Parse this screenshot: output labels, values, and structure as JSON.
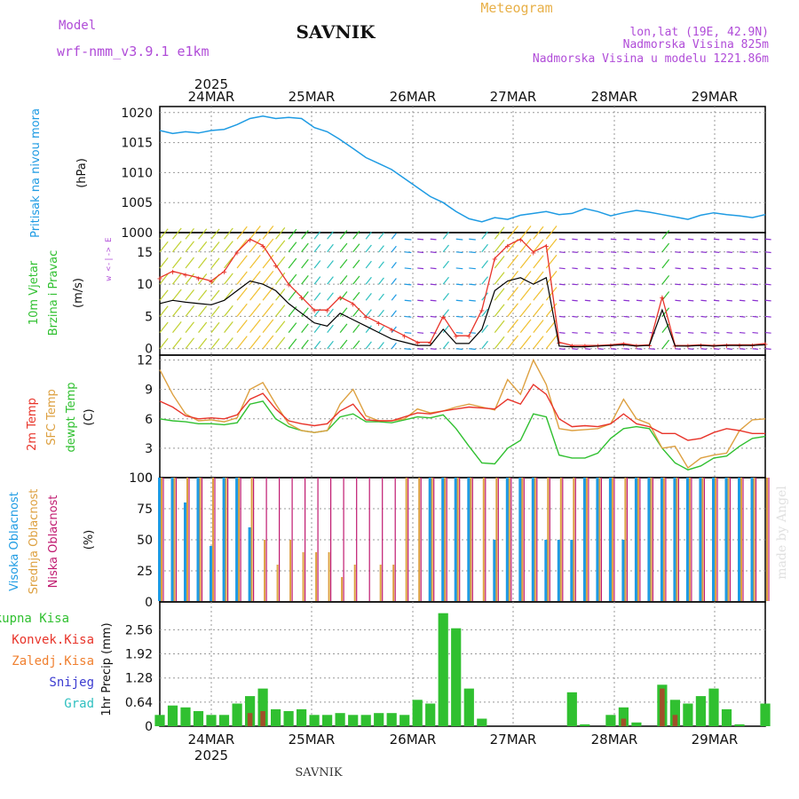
{
  "header": {
    "model_label": "Model",
    "model_name": "wrf-nmm_v3.9.1 e1km",
    "station": "SAVNIK",
    "meteogram": "Meteogram",
    "lonlat": "lon,lat (19E, 42.9N)",
    "elevation": "Nadmorska Visina 825m",
    "model_elevation": "Nadmorska Visina u modelu 1221.86m",
    "footer_station": "SAVNIK",
    "watermark": "made by Angel"
  },
  "time_axis": {
    "year": "2025",
    "dates": [
      "24MAR",
      "25MAR",
      "26MAR",
      "27MAR",
      "28MAR",
      "29MAR"
    ]
  },
  "colors": {
    "pressure": "#1e9be3",
    "wind_speed": "#000000",
    "wind_gust": "#e8342a",
    "temp_2m": "#e8342a",
    "temp_sfc": "#dda040",
    "temp_dew": "#30c030",
    "cloud_high": "#1e9be3",
    "cloud_mid": "#dda040",
    "cloud_low": "#c01a70",
    "precip_total": "#30c030",
    "precip_conv": "#e8342a",
    "precip_frozen": "#f08030",
    "precip_snow": "#3b3bd0",
    "precip_hail": "#30c0c0"
  },
  "panels": {
    "pressure": {
      "label": "Pritisak na nivou mora",
      "unit": "(hPa)"
    },
    "wind": {
      "label1": "10m Vjetar",
      "label2": "Brzina i Pravac",
      "unit": "(m/s)",
      "compass": "w <-|-> E"
    },
    "temp": {
      "label1": "2m Temp",
      "label2": "SFC Temp",
      "label3": "dewpt Temp",
      "unit": "(C)"
    },
    "cloud": {
      "label1": "Visoka Oblacnost",
      "label2": "Srednja Oblacnost",
      "label3": "Niska Oblacnost",
      "unit": "(%)"
    },
    "precip": {
      "unit": "1hr Precip (mm)",
      "legend": [
        "Ukupna Kisa",
        "Konvek.Kisa",
        "Zaledj.Kisa",
        "Snijeg",
        "Grad"
      ]
    }
  },
  "chart_data": [
    {
      "type": "line",
      "title": "",
      "ylabel": "Pritisak na nivou mora (hPa)",
      "ylim": [
        1000,
        1021
      ],
      "yticks": [
        "1000",
        "1005",
        "1010",
        "1015",
        "1020"
      ],
      "x": [
        0,
        3,
        6,
        9,
        12,
        15,
        18,
        21,
        24,
        27,
        30,
        33,
        36,
        39,
        42,
        45,
        48,
        51,
        54,
        57,
        60,
        63,
        66,
        69,
        72,
        75,
        78,
        81,
        84,
        87,
        90,
        93,
        96,
        99,
        102,
        105,
        108,
        111,
        114,
        117,
        120,
        123,
        126,
        129,
        132,
        135,
        138,
        141
      ],
      "series": [
        {
          "name": "",
          "values": [
            1017,
            1016.5,
            1016.8,
            1016.6,
            1017,
            1017.2,
            1018,
            1019,
            1019.4,
            1019,
            1019.2,
            1019,
            1017.5,
            1016.8,
            1015.5,
            1014,
            1012.5,
            1011.5,
            1010.5,
            1009,
            1007.5,
            1006,
            1005,
            1003.5,
            1002.3,
            1001.8,
            1002.5,
            1002.2,
            1002.9,
            1003.2,
            1003.5,
            1003,
            1003.2,
            1004,
            1003.5,
            1002.8,
            1003.3,
            1003.7,
            1003.4,
            1003,
            1002.6,
            1002.2,
            1002.9,
            1003.3,
            1003,
            1002.8,
            1002.5,
            1003
          ]
        }
      ]
    },
    {
      "type": "line",
      "title": "",
      "ylabel": "10m Vjetar Brzina i Pravac (m/s)",
      "ylim": [
        -1,
        18
      ],
      "yticks": [
        "0",
        "5",
        "10",
        "15"
      ],
      "x": [
        0,
        3,
        6,
        9,
        12,
        15,
        18,
        21,
        24,
        27,
        30,
        33,
        36,
        39,
        42,
        45,
        48,
        51,
        54,
        57,
        60,
        63,
        66,
        69,
        72,
        75,
        78,
        81,
        84,
        87,
        90,
        93,
        96,
        99,
        102,
        105,
        108,
        111,
        114,
        117,
        120,
        123,
        126,
        129,
        132,
        135,
        138,
        141
      ],
      "series": [
        {
          "name": "",
          "values": [
            7,
            7.5,
            7.2,
            7,
            6.8,
            7.5,
            9,
            10.5,
            10,
            9,
            7,
            5.5,
            4,
            3.5,
            5.5,
            4.5,
            3.5,
            2.5,
            1.5,
            1,
            0.5,
            0.5,
            3,
            0.8,
            0.8,
            3,
            9,
            10.5,
            11,
            10,
            11,
            0.4,
            0.3,
            0.3,
            0.4,
            0.5,
            0.6,
            0.4,
            0.5,
            6,
            0.4,
            0.4,
            0.5,
            0.4,
            0.5,
            0.5,
            0.5,
            0.6
          ]
        },
        {
          "name": "",
          "values": [
            11,
            12,
            11.5,
            11,
            10.5,
            12,
            15,
            17,
            16,
            13,
            10,
            8,
            6,
            6,
            8,
            7,
            5,
            4,
            3,
            2,
            1,
            1,
            5,
            2,
            2,
            6,
            14,
            16,
            17,
            15,
            16,
            1,
            0.5,
            0.5,
            0.5,
            0.6,
            0.8,
            0.5,
            0.6,
            8,
            0.5,
            0.5,
            0.6,
            0.5,
            0.6,
            0.6,
            0.6,
            0.8
          ]
        }
      ]
    },
    {
      "type": "line",
      "title": "",
      "ylabel": "Temp (C)",
      "ylim": [
        0,
        12.5
      ],
      "yticks": [
        "0",
        "3",
        "6",
        "9",
        "12"
      ],
      "x": [
        0,
        3,
        6,
        9,
        12,
        15,
        18,
        21,
        24,
        27,
        30,
        33,
        36,
        39,
        42,
        45,
        48,
        51,
        54,
        57,
        60,
        63,
        66,
        69,
        72,
        75,
        78,
        81,
        84,
        87,
        90,
        93,
        96,
        99,
        102,
        105,
        108,
        111,
        114,
        117,
        120,
        123,
        126,
        129,
        132,
        135,
        138,
        141
      ],
      "series": [
        {
          "name": "2m Temp",
          "values": [
            7.8,
            7.2,
            6.3,
            6,
            6.1,
            6,
            6.4,
            8,
            8.6,
            7,
            5.8,
            5.5,
            5.3,
            5.5,
            6.8,
            7.5,
            5.9,
            5.8,
            5.8,
            6.2,
            6.6,
            6.5,
            6.8,
            7,
            7.2,
            7.1,
            7,
            8,
            7.5,
            9.5,
            8.5,
            6,
            5.2,
            5.3,
            5.2,
            5.5,
            6.5,
            5.5,
            5.2,
            4.5,
            4.5,
            3.8,
            4,
            4.6,
            5,
            4.8,
            4.5,
            4.5
          ]
        },
        {
          "name": "SFC Temp",
          "values": [
            11,
            8.5,
            6.5,
            5.8,
            5.9,
            5.7,
            6.1,
            9,
            9.7,
            7.5,
            5.5,
            4.8,
            4.6,
            4.8,
            7.5,
            9,
            6.3,
            5.8,
            5.8,
            6,
            7,
            6.6,
            6.8,
            7.2,
            7.5,
            7.2,
            6.9,
            10,
            8.5,
            12,
            9.5,
            5,
            4.8,
            4.9,
            5,
            5.5,
            8,
            6,
            5.5,
            3,
            3.2,
            1,
            2,
            2.3,
            2.5,
            4.8,
            5.9,
            6
          ]
        },
        {
          "name": "dewpt Temp",
          "values": [
            6,
            5.8,
            5.7,
            5.5,
            5.5,
            5.4,
            5.6,
            7.5,
            7.8,
            6,
            5.2,
            4.8,
            4.6,
            4.8,
            6.2,
            6.5,
            5.7,
            5.7,
            5.6,
            5.9,
            6.2,
            6.1,
            6.4,
            5,
            3.2,
            1.5,
            1.4,
            3,
            3.8,
            6.5,
            6.2,
            2.3,
            2,
            2,
            2.5,
            4,
            5,
            5.2,
            5,
            3,
            1.5,
            0.8,
            1.2,
            2,
            2.2,
            3.2,
            4,
            4.2
          ]
        }
      ]
    },
    {
      "type": "bar",
      "title": "",
      "ylabel": "Oblacnost (%)",
      "ylim": [
        0,
        100
      ],
      "yticks": [
        "0",
        "25",
        "50",
        "75",
        "100"
      ],
      "x": [
        0,
        3,
        6,
        9,
        12,
        15,
        18,
        21,
        24,
        27,
        30,
        33,
        36,
        39,
        42,
        45,
        48,
        51,
        54,
        57,
        60,
        63,
        66,
        69,
        72,
        75,
        78,
        81,
        84,
        87,
        90,
        93,
        96,
        99,
        102,
        105,
        108,
        111,
        114,
        117,
        120,
        123,
        126,
        129,
        132,
        135,
        138,
        141
      ],
      "series": [
        {
          "name": "Visoka Oblacnost",
          "values": [
            100,
            100,
            80,
            100,
            45,
            100,
            100,
            60,
            0,
            0,
            0,
            0,
            0,
            0,
            0,
            0,
            0,
            0,
            0,
            0,
            0,
            100,
            100,
            100,
            100,
            0,
            50,
            100,
            100,
            100,
            50,
            50,
            50,
            100,
            100,
            100,
            50,
            100,
            100,
            100,
            100,
            100,
            100,
            100,
            100,
            100,
            100,
            0
          ]
        },
        {
          "name": "Srednja Oblacnost",
          "values": [
            100,
            100,
            100,
            100,
            100,
            100,
            100,
            100,
            50,
            30,
            50,
            40,
            40,
            40,
            20,
            30,
            0,
            30,
            30,
            100,
            100,
            100,
            100,
            100,
            100,
            100,
            100,
            100,
            100,
            100,
            100,
            100,
            100,
            100,
            100,
            100,
            100,
            100,
            100,
            100,
            100,
            100,
            100,
            100,
            100,
            100,
            100,
            100
          ]
        },
        {
          "name": "Niska Oblacnost",
          "values": [
            100,
            100,
            100,
            100,
            100,
            100,
            100,
            100,
            100,
            100,
            100,
            100,
            100,
            100,
            100,
            100,
            100,
            100,
            100,
            100,
            100,
            100,
            100,
            100,
            100,
            100,
            100,
            100,
            100,
            100,
            100,
            100,
            100,
            100,
            100,
            100,
            100,
            100,
            100,
            100,
            100,
            100,
            100,
            100,
            100,
            100,
            100,
            100
          ]
        }
      ]
    },
    {
      "type": "bar",
      "title": "",
      "ylabel": "1hr Precip (mm)",
      "ylim": [
        0,
        3.3
      ],
      "yticks": [
        "0",
        "0.64",
        "1.28",
        "1.92",
        "2.56"
      ],
      "x": [
        0,
        3,
        6,
        9,
        12,
        15,
        18,
        21,
        24,
        27,
        30,
        33,
        36,
        39,
        42,
        45,
        48,
        51,
        54,
        57,
        60,
        63,
        66,
        69,
        72,
        75,
        78,
        81,
        84,
        87,
        90,
        93,
        96,
        99,
        102,
        105,
        108,
        111,
        114,
        117,
        120,
        123,
        126,
        129,
        132,
        135,
        138,
        141
      ],
      "series": [
        {
          "name": "Ukupna Kisa",
          "values": [
            0.3,
            0.55,
            0.5,
            0.4,
            0.3,
            0.3,
            0.6,
            0.8,
            1.0,
            0.45,
            0.4,
            0.45,
            0.3,
            0.3,
            0.35,
            0.3,
            0.3,
            0.35,
            0.35,
            0.3,
            0.7,
            0.6,
            3.0,
            2.6,
            1.0,
            0.2,
            0.0,
            0.0,
            0.0,
            0.0,
            0.0,
            0.0,
            0.9,
            0.05,
            0.0,
            0.3,
            0.5,
            0.1,
            0.0,
            1.1,
            0.7,
            0.6,
            0.8,
            1.0,
            0.45,
            0.05,
            0.0,
            0.6
          ]
        },
        {
          "name": "Konvek.Kisa",
          "values": [
            0,
            0,
            0,
            0,
            0,
            0,
            0,
            0.35,
            0.4,
            0,
            0,
            0,
            0,
            0,
            0,
            0,
            0,
            0,
            0,
            0,
            0,
            0,
            0,
            0,
            0,
            0,
            0,
            0,
            0,
            0,
            0,
            0,
            0,
            0,
            0,
            0,
            0.2,
            0,
            0,
            1.0,
            0.3,
            0,
            0,
            0,
            0,
            0,
            0,
            0
          ]
        }
      ]
    }
  ]
}
